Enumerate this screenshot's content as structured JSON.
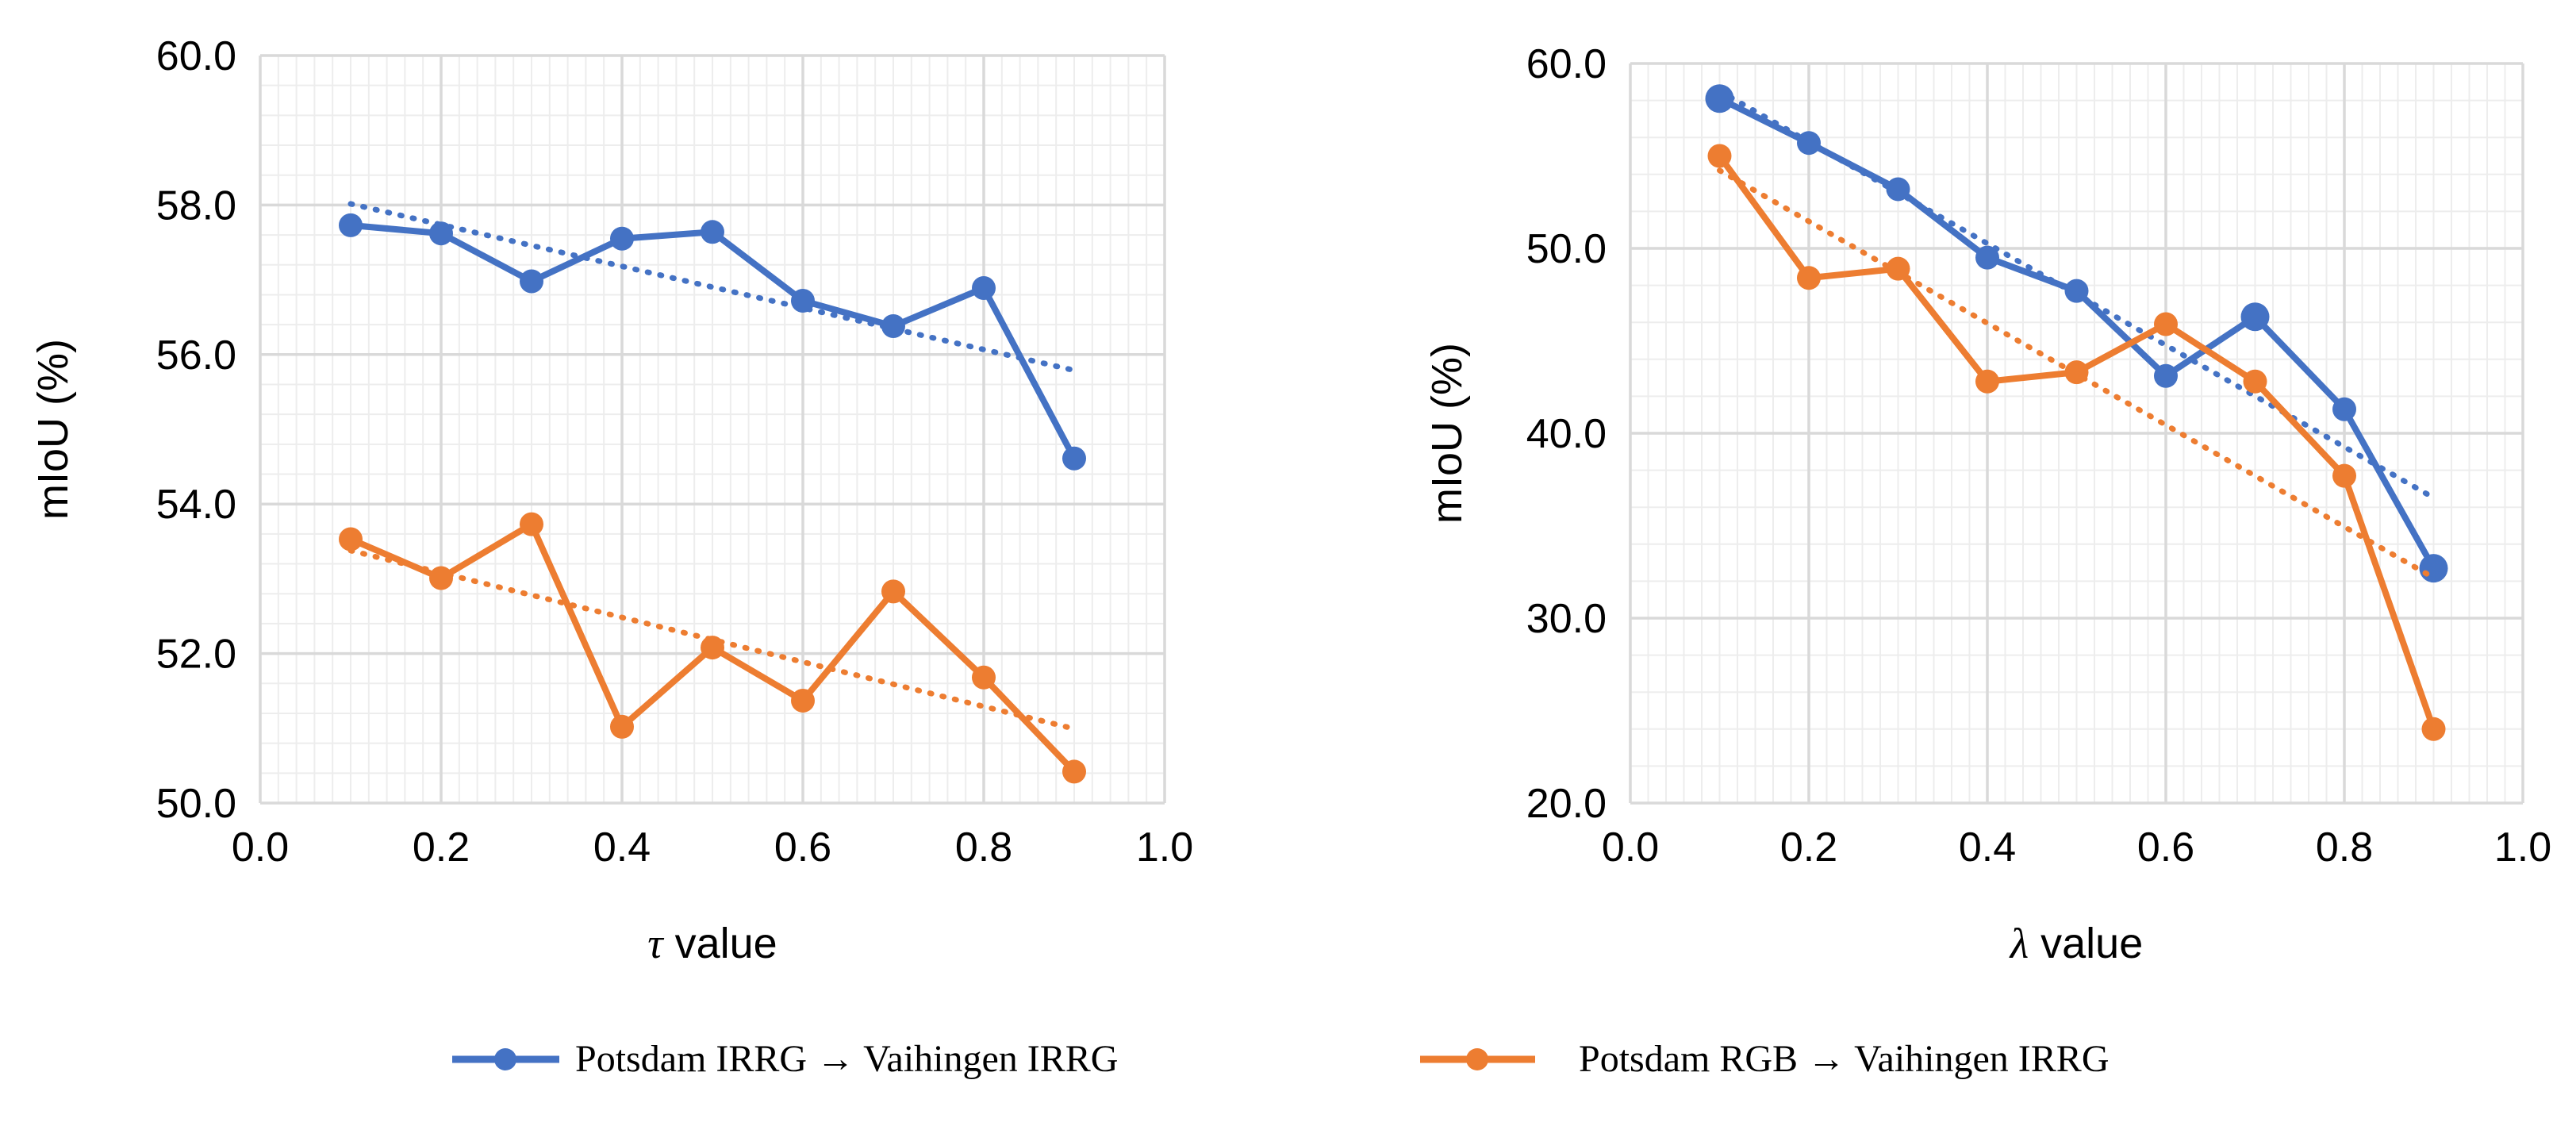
{
  "colors": {
    "series_blue": "#4472C4",
    "series_orange": "#ED7D31",
    "grid_major": "#D9D9D9",
    "grid_minor": "#EDEDED",
    "text": "#000000"
  },
  "legend": {
    "position": "bottom-center",
    "entries": [
      "Potsdam IRRG → Vaihingen IRRG",
      "Potsdam RGB → Vaihingen IRRG"
    ]
  },
  "chart_data": [
    {
      "type": "line",
      "title": "",
      "xlabel_symbol": "τ",
      "xlabel_text": " value",
      "ylabel": "mIoU (%)",
      "xlim": [
        0.0,
        1.0
      ],
      "ylim": [
        50.0,
        60.0
      ],
      "x_ticks": [
        "0.0",
        "0.2",
        "0.4",
        "0.6",
        "0.8",
        "1.0"
      ],
      "y_ticks": [
        "50.0",
        "52.0",
        "54.0",
        "56.0",
        "58.0",
        "60.0"
      ],
      "x": [
        0.1,
        0.2,
        0.3,
        0.4,
        0.5,
        0.6,
        0.7,
        0.8,
        0.9
      ],
      "series": [
        {
          "name": "Potsdam IRRG → Vaihingen IRRG",
          "values": [
            57.73,
            57.62,
            56.98,
            57.55,
            57.64,
            56.72,
            56.38,
            56.89,
            54.61
          ],
          "trendline": "linear"
        },
        {
          "name": "Potsdam RGB → Vaihingen IRRG",
          "values": [
            53.53,
            53.01,
            53.73,
            51.02,
            52.08,
            51.37,
            52.83,
            51.68,
            50.42
          ],
          "trendline": "linear"
        }
      ],
      "grid": true
    },
    {
      "type": "line",
      "title": "",
      "xlabel_symbol": "λ",
      "xlabel_text": " value",
      "ylabel": "mIoU (%)",
      "xlim": [
        0.0,
        1.0
      ],
      "ylim": [
        20.0,
        60.0
      ],
      "x_ticks": [
        "0.0",
        "0.2",
        "0.4",
        "0.6",
        "0.8",
        "1.0"
      ],
      "y_ticks": [
        "20.0",
        "30.0",
        "40.0",
        "50.0",
        "60.0"
      ],
      "x": [
        0.1,
        0.2,
        0.3,
        0.4,
        0.5,
        0.6,
        0.7,
        0.8,
        0.9
      ],
      "series": [
        {
          "name": "Potsdam IRRG → Vaihingen IRRG",
          "values": [
            58.1,
            55.7,
            53.2,
            49.5,
            47.7,
            43.1,
            46.3,
            41.3,
            32.7
          ],
          "trendline": "linear"
        },
        {
          "name": "Potsdam RGB → Vaihingen IRRG",
          "values": [
            55.0,
            48.4,
            48.9,
            42.8,
            43.3,
            45.9,
            42.8,
            37.7,
            24.0
          ],
          "trendline": "linear"
        }
      ],
      "grid": true
    }
  ]
}
